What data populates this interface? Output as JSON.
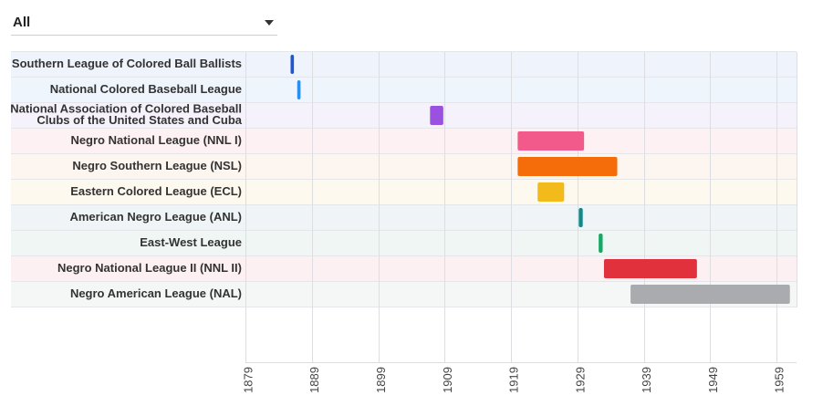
{
  "filter": {
    "selected": "All",
    "icon": "chevron-down-icon"
  },
  "chart_data": {
    "type": "timeline",
    "title": "",
    "xlabel": "",
    "ylabel": "",
    "xlim": [
      1879,
      1962
    ],
    "x_ticks": [
      1879,
      1889,
      1899,
      1909,
      1919,
      1929,
      1939,
      1949,
      1959
    ],
    "grid": true,
    "rows": [
      {
        "label": [
          "Southern League of Colored Ball Ballists"
        ],
        "start": 1885.8,
        "end": 1886.3,
        "color": "#1f56d6",
        "band": "#eff3fb"
      },
      {
        "label": [
          "National Colored Baseball League"
        ],
        "start": 1886.8,
        "end": 1887.3,
        "color": "#2b8ff2",
        "band": "#eff5fc"
      },
      {
        "label": [
          "National Association of Colored Baseball",
          "Clubs of the United States and Cuba"
        ],
        "start": 1906.8,
        "end": 1908.8,
        "color": "#9b51e0",
        "band": "#f5f2fb"
      },
      {
        "label": [
          "Negro National League (NNL I)"
        ],
        "start": 1920,
        "end": 1930,
        "color": "#f35a8c",
        "band": "#fdf1f4"
      },
      {
        "label": [
          "Negro Southern League (NSL)"
        ],
        "start": 1920,
        "end": 1935,
        "color": "#f56d0a",
        "band": "#fdf5ef"
      },
      {
        "label": [
          "Eastern Colored League (ECL)"
        ],
        "start": 1923,
        "end": 1927,
        "color": "#f2bb1b",
        "band": "#fdf9ef"
      },
      {
        "label": [
          "American Negro League (ANL)"
        ],
        "start": 1929.2,
        "end": 1929.8,
        "color": "#10888c",
        "band": "#eff5f6"
      },
      {
        "label": [
          "East-West League"
        ],
        "start": 1932.2,
        "end": 1932.8,
        "color": "#17a866",
        "band": "#eff6f3"
      },
      {
        "label": [
          "Negro National League II (NNL II)"
        ],
        "start": 1933,
        "end": 1947,
        "color": "#e0313d",
        "band": "#fcf0f2"
      },
      {
        "label": [
          "Negro American League (NAL)"
        ],
        "start": 1937,
        "end": 1961,
        "color": "#a9abaf",
        "band": "#f5f7f7"
      }
    ]
  }
}
